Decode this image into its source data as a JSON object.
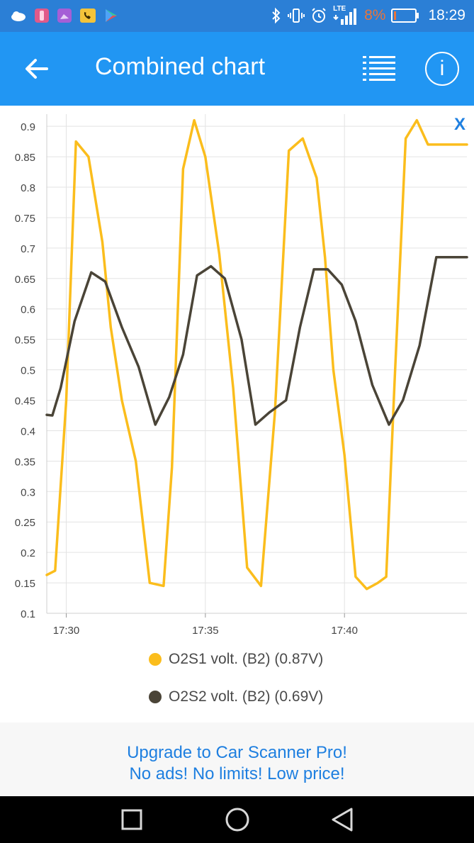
{
  "status_bar": {
    "battery_percent": "8%",
    "network": "LTE",
    "time": "18:29",
    "battery_color": "#e8743b",
    "icons": [
      "weather-icon",
      "app-icon-pink",
      "app-icon-purple",
      "app-icon-phone",
      "play-store-icon",
      "bluetooth-icon",
      "vibrate-icon",
      "alarm-icon",
      "signal-icon",
      "battery-icon"
    ]
  },
  "app_bar": {
    "title": "Combined chart",
    "back_icon": "arrow-left-icon",
    "menu_icon": "list-icon",
    "info_icon": "info-icon",
    "info_label": "i"
  },
  "chart_close_label": "X",
  "chart_data": {
    "type": "line",
    "x_ticks": [
      "17:30",
      "17:35",
      "17:40"
    ],
    "y_ticks": [
      0.1,
      0.15,
      0.2,
      0.25,
      0.3,
      0.35,
      0.4,
      0.45,
      0.5,
      0.55,
      0.6,
      0.65,
      0.7,
      0.75,
      0.8,
      0.85,
      0.9
    ],
    "ylim": [
      0.1,
      0.92
    ],
    "xlim_minutes": [
      29.3,
      44.4
    ],
    "grid": true,
    "legend_position": "bottom",
    "series": [
      {
        "name": "O2S1 volt. (B2) (0.87V)",
        "color": "#fbbd1c",
        "x_minutes": [
          29.3,
          29.6,
          30.0,
          30.35,
          30.8,
          31.3,
          31.6,
          32.0,
          32.5,
          33.0,
          33.5,
          33.8,
          34.2,
          34.6,
          35.0,
          35.5,
          36.0,
          36.5,
          37.0,
          37.5,
          38.0,
          38.5,
          39.0,
          39.3,
          39.6,
          40.0,
          40.4,
          40.8,
          41.2,
          41.5,
          41.8,
          42.2,
          42.6,
          43.0,
          43.5,
          43.7,
          44.0,
          44.4
        ],
        "values": [
          0.163,
          0.17,
          0.45,
          0.875,
          0.85,
          0.71,
          0.57,
          0.45,
          0.35,
          0.15,
          0.145,
          0.34,
          0.83,
          0.91,
          0.85,
          0.69,
          0.47,
          0.175,
          0.145,
          0.43,
          0.86,
          0.88,
          0.815,
          0.685,
          0.5,
          0.36,
          0.16,
          0.14,
          0.15,
          0.16,
          0.48,
          0.88,
          0.91,
          0.87,
          0.87,
          0.87,
          0.87,
          0.87
        ]
      },
      {
        "name": "O2S2 volt. (B2) (0.69V)",
        "color": "#4a4437",
        "x_minutes": [
          29.3,
          29.5,
          29.8,
          30.3,
          30.9,
          31.4,
          32.0,
          32.6,
          33.2,
          33.7,
          34.2,
          34.7,
          35.2,
          35.7,
          36.3,
          36.8,
          37.3,
          37.9,
          38.4,
          38.9,
          39.4,
          39.9,
          40.4,
          41.0,
          41.6,
          42.1,
          42.7,
          43.3,
          43.8,
          44.4
        ],
        "values": [
          0.426,
          0.425,
          0.47,
          0.58,
          0.66,
          0.645,
          0.57,
          0.505,
          0.41,
          0.455,
          0.525,
          0.655,
          0.67,
          0.65,
          0.55,
          0.41,
          0.43,
          0.45,
          0.57,
          0.665,
          0.665,
          0.64,
          0.58,
          0.475,
          0.41,
          0.45,
          0.54,
          0.685,
          0.685,
          0.685
        ]
      }
    ]
  },
  "ad_banner": {
    "line1": "Upgrade to Car Scanner Pro!",
    "line2": "No ads! No limits! Low price!"
  },
  "nav_bar": {
    "icons": [
      "recent-apps-icon",
      "home-icon",
      "back-triangle-icon"
    ]
  }
}
